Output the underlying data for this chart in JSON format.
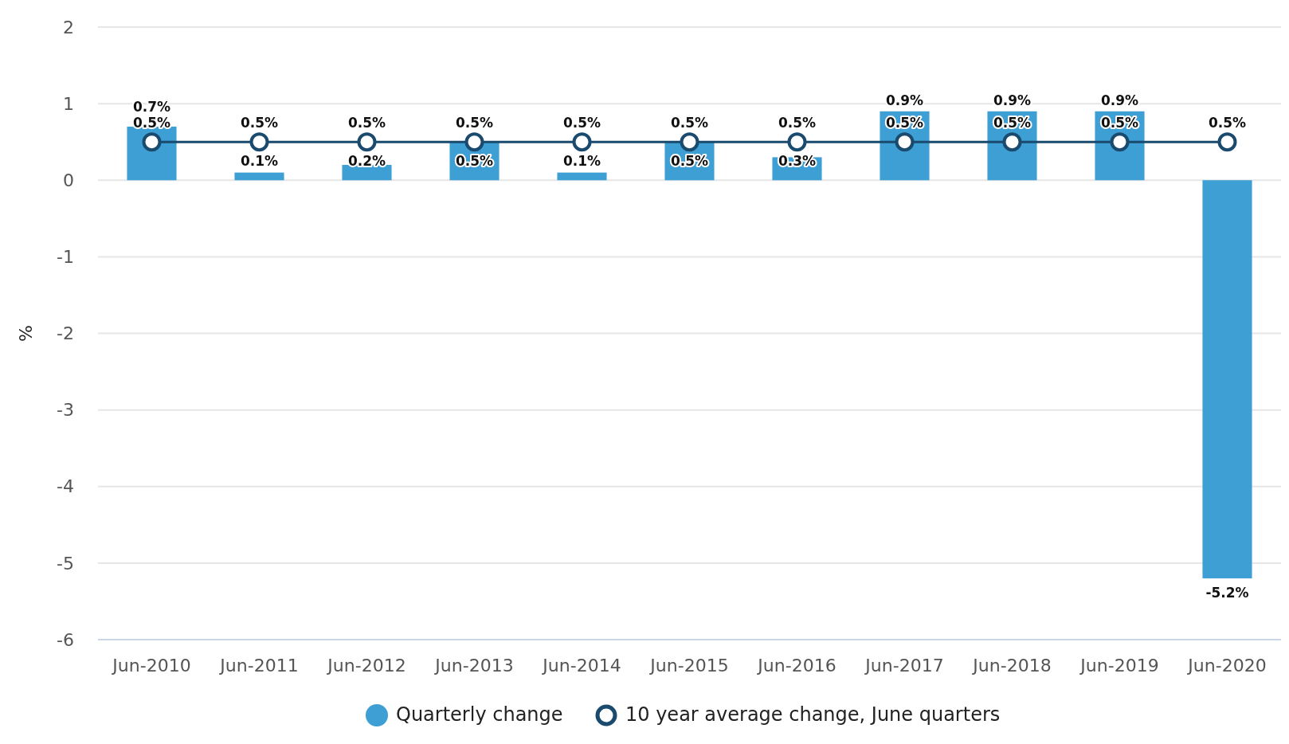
{
  "chart_data": {
    "type": "bar",
    "ylabel": "%",
    "categories": [
      "Jun-2010",
      "Jun-2011",
      "Jun-2012",
      "Jun-2013",
      "Jun-2014",
      "Jun-2015",
      "Jun-2016",
      "Jun-2017",
      "Jun-2018",
      "Jun-2019",
      "Jun-2020"
    ],
    "series": [
      {
        "name": "Quarterly change",
        "color": "#3d9fd3",
        "values": [
          0.7,
          0.1,
          0.2,
          0.5,
          0.1,
          0.5,
          0.3,
          0.9,
          0.9,
          0.9,
          -5.2
        ],
        "value_labels": [
          "0.7%",
          "0.1%",
          "0.2%",
          "0.5%",
          "0.1%",
          "0.5%",
          "0.3%",
          "0.9%",
          "0.9%",
          "0.9%",
          "-5.2%"
        ]
      },
      {
        "name": "10 year average change, June quarters",
        "type": "line",
        "color": "#1a4a6e",
        "marker": "circle",
        "values": [
          0.5,
          0.5,
          0.5,
          0.5,
          0.5,
          0.5,
          0.5,
          0.5,
          0.5,
          0.5,
          0.5
        ],
        "value_labels": [
          "0.5%",
          "0.5%",
          "0.5%",
          "0.5%",
          "0.5%",
          "0.5%",
          "0.5%",
          "0.5%",
          "0.5%",
          "0.5%",
          "0.5%"
        ]
      }
    ],
    "ylim": [
      -6,
      2
    ],
    "yticks": [
      -6,
      -5,
      -4,
      -3,
      -2,
      -1,
      0,
      1,
      2
    ],
    "grid": "y",
    "legend": "bottom"
  }
}
